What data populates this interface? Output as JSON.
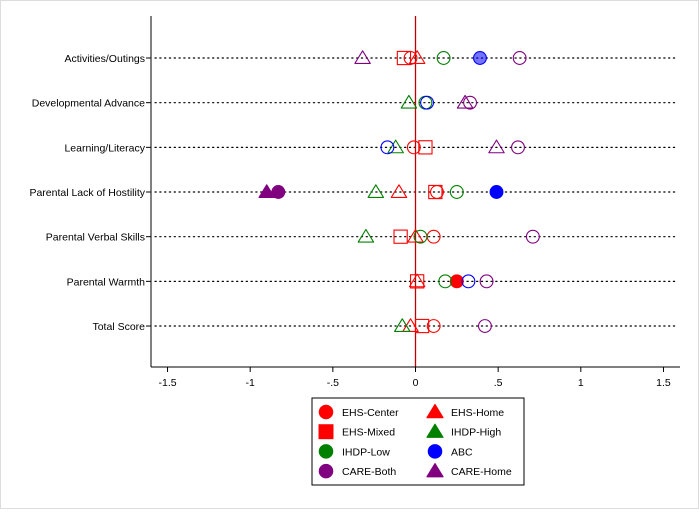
{
  "chart_data": {
    "type": "scatter",
    "title": "",
    "xlabel": "",
    "ylabel": "",
    "xlim": [
      -1.6,
      1.6
    ],
    "x_ticks": [
      "-1.5",
      "-1",
      "-.5",
      "0",
      ".5",
      "1",
      "1.5"
    ],
    "x_tick_values": [
      -1.5,
      -1,
      -0.5,
      0,
      0.5,
      1,
      1.5
    ],
    "reference_line": {
      "x": 0,
      "color": "#c00000"
    },
    "grid": "dotted horizontal lines at each category",
    "legend_position": "bottom-center",
    "categories": [
      "Activities/Outings",
      "Developmental Advance",
      "Learning/Literacy",
      "Parental Lack of Hostility",
      "Parental Verbal Skills",
      "Parental Warmth",
      "Total Score"
    ],
    "series": [
      {
        "name": "EHS-Center",
        "marker": "circle",
        "color": "#ff0000",
        "points": [
          {
            "category": "Activities/Outings",
            "x": -0.03,
            "sig": false
          },
          {
            "category": "Learning/Literacy",
            "x": -0.01,
            "sig": false
          },
          {
            "category": "Parental Lack of Hostility",
            "x": 0.13,
            "sig": false
          },
          {
            "category": "Parental Verbal Skills",
            "x": 0.11,
            "sig": false
          },
          {
            "category": "Parental Warmth",
            "x": 0.25,
            "sig": true
          },
          {
            "category": "Total Score",
            "x": 0.11,
            "sig": false
          }
        ]
      },
      {
        "name": "EHS-Home",
        "marker": "triangle",
        "color": "#ff0000",
        "points": [
          {
            "category": "Activities/Outings",
            "x": 0.01,
            "sig": false
          },
          {
            "category": "Parental Lack of Hostility",
            "x": -0.1,
            "sig": false
          },
          {
            "category": "Parental Verbal Skills",
            "x": 0.0,
            "sig": false
          },
          {
            "category": "Parental Warmth",
            "x": 0.01,
            "sig": false
          },
          {
            "category": "Total Score",
            "x": -0.03,
            "sig": false
          }
        ]
      },
      {
        "name": "EHS-Mixed",
        "marker": "square",
        "color": "#ff0000",
        "points": [
          {
            "category": "Activities/Outings",
            "x": -0.07,
            "sig": false
          },
          {
            "category": "Learning/Literacy",
            "x": 0.06,
            "sig": false
          },
          {
            "category": "Parental Lack of Hostility",
            "x": 0.12,
            "sig": false
          },
          {
            "category": "Parental Verbal Skills",
            "x": -0.09,
            "sig": false
          },
          {
            "category": "Parental Warmth",
            "x": 0.01,
            "sig": false
          },
          {
            "category": "Total Score",
            "x": 0.04,
            "sig": false
          }
        ]
      },
      {
        "name": "IHDP-High",
        "marker": "triangle",
        "color": "#008000",
        "points": [
          {
            "category": "Developmental Advance",
            "x": -0.04,
            "sig": false
          },
          {
            "category": "Learning/Literacy",
            "x": -0.12,
            "sig": false
          },
          {
            "category": "Parental Lack of Hostility",
            "x": -0.24,
            "sig": false
          },
          {
            "category": "Parental Verbal Skills",
            "x": -0.3,
            "sig": false
          },
          {
            "category": "Total Score",
            "x": -0.08,
            "sig": false
          }
        ]
      },
      {
        "name": "IHDP-Low",
        "marker": "circle",
        "color": "#008000",
        "points": [
          {
            "category": "Activities/Outings",
            "x": 0.17,
            "sig": false
          },
          {
            "category": "Developmental Advance",
            "x": 0.06,
            "sig": false
          },
          {
            "category": "Parental Lack of Hostility",
            "x": 0.25,
            "sig": false
          },
          {
            "category": "Parental Verbal Skills",
            "x": 0.03,
            "sig": false
          },
          {
            "category": "Parental Warmth",
            "x": 0.18,
            "sig": false
          }
        ]
      },
      {
        "name": "ABC",
        "marker": "circle",
        "color": "#0000ff",
        "points": [
          {
            "category": "Activities/Outings",
            "x": 0.39,
            "sig": true
          },
          {
            "category": "Developmental Advance",
            "x": 0.07,
            "sig": false
          },
          {
            "category": "Learning/Literacy",
            "x": -0.17,
            "sig": false
          },
          {
            "category": "Parental Lack of Hostility",
            "x": 0.49,
            "sig": true
          },
          {
            "category": "Parental Warmth",
            "x": 0.32,
            "sig": false
          }
        ]
      },
      {
        "name": "CARE-Both",
        "marker": "circle",
        "color": "#800080",
        "points": [
          {
            "category": "Activities/Outings",
            "x": 0.63,
            "sig": false
          },
          {
            "category": "Developmental Advance",
            "x": 0.33,
            "sig": false
          },
          {
            "category": "Learning/Literacy",
            "x": 0.62,
            "sig": false
          },
          {
            "category": "Parental Lack of Hostility",
            "x": -0.83,
            "sig": true
          },
          {
            "category": "Parental Verbal Skills",
            "x": 0.71,
            "sig": false
          },
          {
            "category": "Parental Warmth",
            "x": 0.43,
            "sig": false
          },
          {
            "category": "Total Score",
            "x": 0.42,
            "sig": false
          }
        ]
      },
      {
        "name": "CARE-Home",
        "marker": "triangle",
        "color": "#800080",
        "points": [
          {
            "category": "Activities/Outings",
            "x": -0.32,
            "sig": false
          },
          {
            "category": "Developmental Advance",
            "x": 0.3,
            "sig": false
          },
          {
            "category": "Learning/Literacy",
            "x": 0.49,
            "sig": false
          },
          {
            "category": "Parental Lack of Hostility",
            "x": -0.9,
            "sig": true
          }
        ]
      }
    ],
    "legend_order": [
      "EHS-Center",
      "EHS-Home",
      "EHS-Mixed",
      "IHDP-High",
      "IHDP-Low",
      "ABC",
      "CARE-Both",
      "CARE-Home"
    ]
  }
}
